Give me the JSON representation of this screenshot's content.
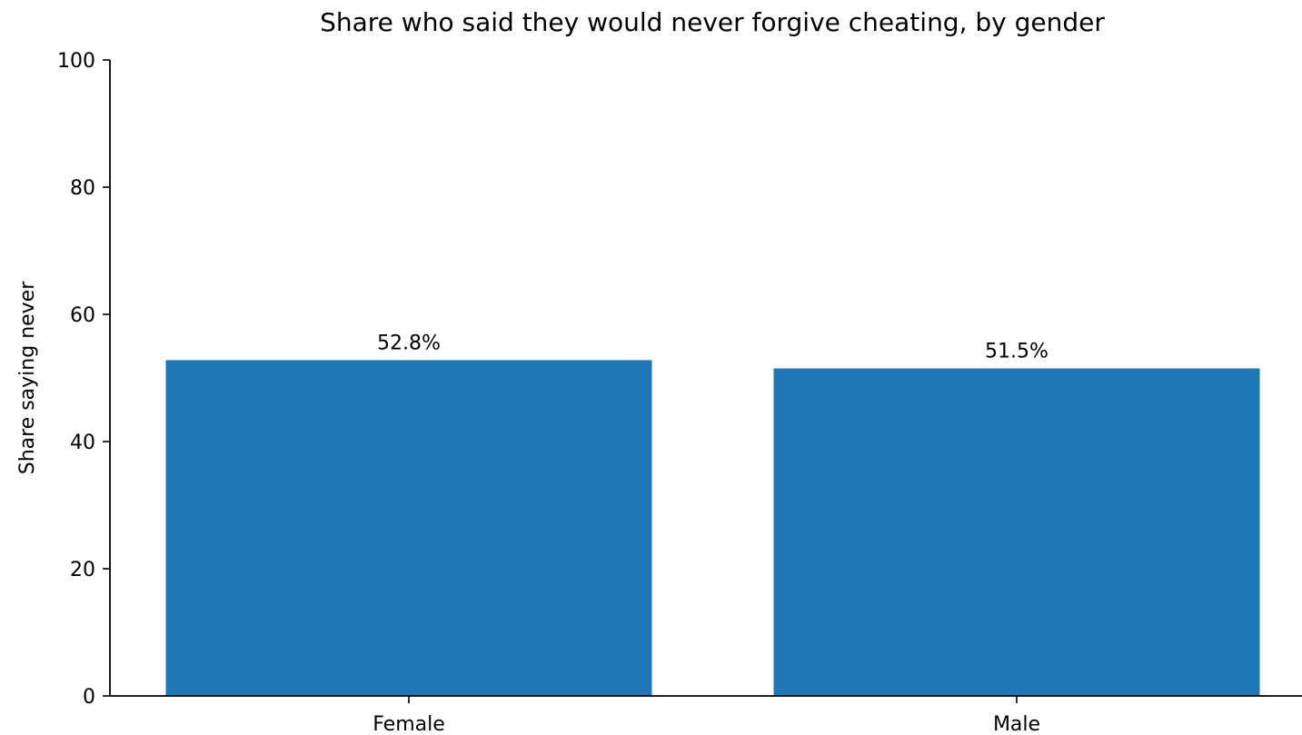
{
  "chart_data": {
    "type": "bar",
    "title": "Share who said they would never forgive cheating, by gender",
    "xlabel": "",
    "ylabel": "Share saying never",
    "categories": [
      "Female",
      "Male"
    ],
    "values": [
      52.8,
      51.5
    ],
    "value_labels": [
      "52.8%",
      "51.5%"
    ],
    "ylim": [
      0,
      100
    ],
    "yticks": [
      0,
      20,
      40,
      60,
      80,
      100
    ],
    "grid": false,
    "legend": "none",
    "bar_color": "#1f77b4"
  }
}
